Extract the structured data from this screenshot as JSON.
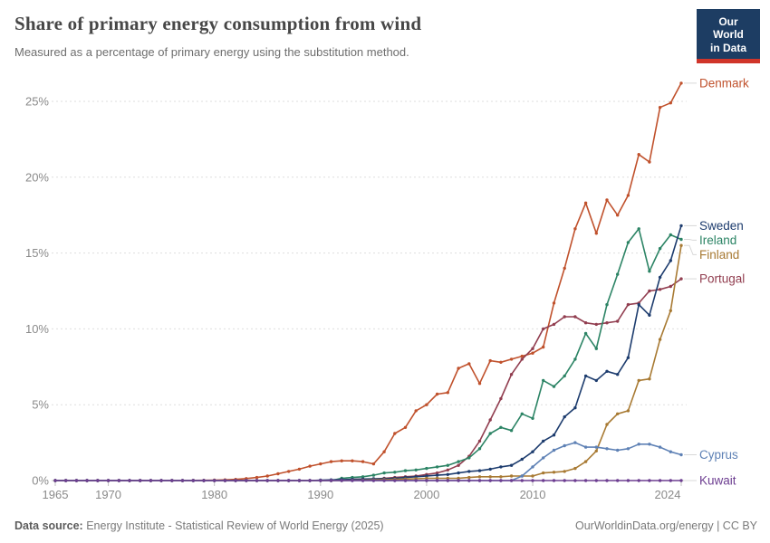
{
  "header": {
    "title": "Share of primary energy consumption from wind",
    "subtitle": "Measured as a percentage of primary energy using the substitution method.",
    "logo": {
      "line1": "Our World",
      "line2": "in Data",
      "bg_color": "#1D3D63",
      "bar_color": "#D0352A"
    }
  },
  "footer": {
    "source_label": "Data source:",
    "source_text": " Energy Institute - Statistical Review of World Energy (2025)",
    "credit": "OurWorldinData.org/energy | CC BY"
  },
  "style_colors": {
    "grid": "#dedede",
    "axis_line": "#c2c2c2",
    "tick_text": "#8a8a8a",
    "connector": "#d8d8d8",
    "title_text": "#474747",
    "subtitle_text": "#6e6e6e"
  },
  "chart_data": {
    "type": "line",
    "title": "Share of primary energy consumption from wind",
    "xlabel": "",
    "ylabel": "",
    "unit": "%",
    "x_start": 1965,
    "x_end": 2024,
    "x_step": 1,
    "ylim": [
      0,
      25
    ],
    "yticks": [
      0,
      5,
      10,
      15,
      20,
      25
    ],
    "xticks": [
      1965,
      1970,
      1980,
      1990,
      2000,
      2010,
      2024
    ],
    "grid": "horizontal-dashed",
    "legend_position": "right-end-labels",
    "markers": true,
    "series": [
      {
        "name": "Denmark",
        "color": "#C0512C",
        "values": [
          0,
          0,
          0,
          0,
          0,
          0,
          0,
          0,
          0,
          0,
          0,
          0,
          0,
          0.01,
          0.02,
          0.03,
          0.05,
          0.08,
          0.13,
          0.2,
          0.3,
          0.45,
          0.6,
          0.75,
          0.95,
          1.1,
          1.25,
          1.3,
          1.3,
          1.25,
          1.1,
          1.9,
          3.1,
          3.5,
          4.6,
          5.0,
          5.7,
          5.8,
          7.4,
          7.7,
          6.4,
          7.9,
          7.8,
          8.0,
          8.2,
          8.4,
          8.8,
          11.7,
          14.0,
          16.6,
          18.3,
          16.3,
          18.5,
          17.5,
          18.8,
          21.5,
          21.0,
          24.6,
          24.9,
          26.2
        ]
      },
      {
        "name": "Portugal",
        "color": "#913D4F",
        "values": [
          0,
          0,
          0,
          0,
          0,
          0,
          0,
          0,
          0,
          0,
          0,
          0,
          0,
          0,
          0,
          0,
          0,
          0,
          0,
          0,
          0,
          0,
          0,
          0,
          0,
          0,
          0,
          0.05,
          0.08,
          0.1,
          0.1,
          0.15,
          0.2,
          0.25,
          0.3,
          0.4,
          0.5,
          0.7,
          1.0,
          1.6,
          2.6,
          4.0,
          5.4,
          7.0,
          8.0,
          8.7,
          10.0,
          10.3,
          10.8,
          10.8,
          10.4,
          10.3,
          10.4,
          10.5,
          11.6,
          11.7,
          12.5,
          12.6,
          12.8,
          13.3
        ]
      },
      {
        "name": "Ireland",
        "color": "#2C8465",
        "values": [
          0,
          0,
          0,
          0,
          0,
          0,
          0,
          0,
          0,
          0,
          0,
          0,
          0,
          0,
          0,
          0,
          0,
          0,
          0,
          0,
          0,
          0,
          0,
          0,
          0,
          0,
          0,
          0.15,
          0.2,
          0.25,
          0.35,
          0.5,
          0.55,
          0.65,
          0.7,
          0.8,
          0.9,
          1.0,
          1.25,
          1.5,
          2.1,
          3.1,
          3.5,
          3.3,
          4.4,
          4.1,
          6.6,
          6.2,
          6.9,
          8.0,
          9.7,
          8.7,
          11.6,
          13.6,
          15.7,
          16.6,
          13.8,
          15.3,
          16.2,
          15.9
        ]
      },
      {
        "name": "Sweden",
        "color": "#1D3C6E",
        "values": [
          0,
          0,
          0,
          0,
          0,
          0,
          0,
          0,
          0,
          0,
          0,
          0,
          0,
          0,
          0,
          0,
          0,
          0,
          0,
          0,
          0,
          0,
          0,
          0,
          0,
          0.03,
          0.05,
          0.06,
          0.08,
          0.1,
          0.12,
          0.12,
          0.15,
          0.2,
          0.25,
          0.3,
          0.35,
          0.4,
          0.5,
          0.6,
          0.65,
          0.75,
          0.9,
          1.0,
          1.4,
          1.9,
          2.6,
          3.0,
          4.2,
          4.8,
          6.9,
          6.6,
          7.2,
          7.0,
          8.1,
          11.6,
          10.9,
          13.4,
          14.5,
          16.8
        ]
      },
      {
        "name": "Finland",
        "color": "#A87A33",
        "values": [
          0,
          0,
          0,
          0,
          0,
          0,
          0,
          0,
          0,
          0,
          0,
          0,
          0,
          0,
          0,
          0,
          0,
          0,
          0,
          0,
          0,
          0,
          0,
          0,
          0,
          0,
          0,
          0,
          0.02,
          0.03,
          0.05,
          0.06,
          0.08,
          0.1,
          0.12,
          0.15,
          0.15,
          0.15,
          0.15,
          0.2,
          0.25,
          0.25,
          0.25,
          0.3,
          0.3,
          0.3,
          0.5,
          0.55,
          0.6,
          0.8,
          1.25,
          1.95,
          3.7,
          4.4,
          4.6,
          6.6,
          6.7,
          9.3,
          11.2,
          15.5
        ]
      },
      {
        "name": "Cyprus",
        "color": "#5E81B5",
        "values": [
          0,
          0,
          0,
          0,
          0,
          0,
          0,
          0,
          0,
          0,
          0,
          0,
          0,
          0,
          0,
          0,
          0,
          0,
          0,
          0,
          0,
          0,
          0,
          0,
          0,
          0,
          0,
          0,
          0,
          0,
          0,
          0,
          0,
          0,
          0,
          0,
          0,
          0,
          0,
          0,
          0,
          0,
          0,
          0,
          0.3,
          0.9,
          1.5,
          2.0,
          2.3,
          2.5,
          2.2,
          2.2,
          2.1,
          2.0,
          2.1,
          2.4,
          2.4,
          2.2,
          1.9,
          1.7
        ]
      },
      {
        "name": "Kuwait",
        "color": "#6D3E91",
        "values": [
          0,
          0,
          0,
          0,
          0,
          0,
          0,
          0,
          0,
          0,
          0,
          0,
          0,
          0,
          0,
          0,
          0,
          0,
          0,
          0,
          0,
          0,
          0,
          0,
          0,
          0,
          0,
          0,
          0,
          0,
          0,
          0,
          0,
          0,
          0,
          0,
          0,
          0,
          0,
          0,
          0,
          0,
          0,
          0,
          0,
          0,
          0,
          0,
          0,
          0,
          0,
          0,
          0,
          0,
          0,
          0,
          0,
          0,
          0,
          0
        ]
      }
    ]
  }
}
